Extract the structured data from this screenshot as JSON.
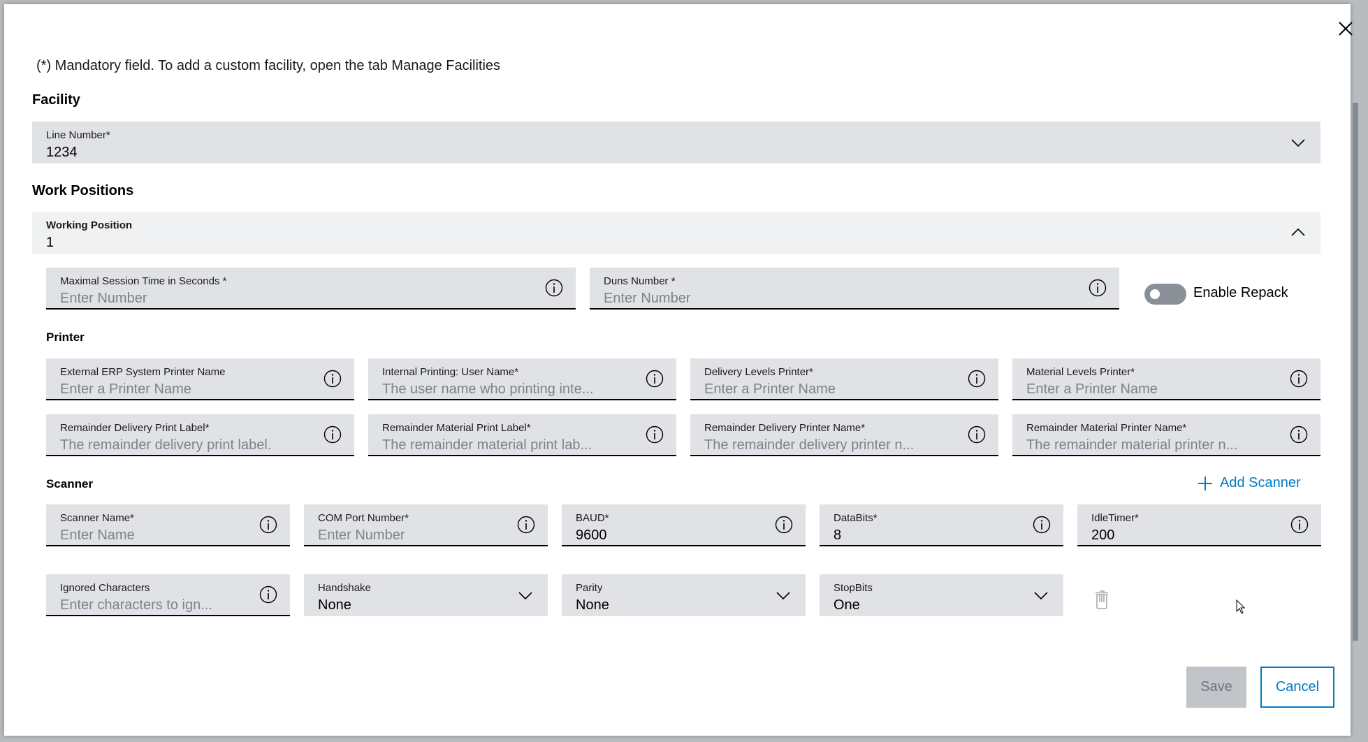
{
  "note": "(*) Mandatory field. To add a custom facility, open the tab Manage Facilities",
  "facility": {
    "heading": "Facility",
    "line_number": {
      "label": "Line Number*",
      "value": "1234"
    }
  },
  "work_positions": {
    "heading": "Work Positions",
    "working_position": {
      "label": "Working Position",
      "value": "1",
      "expanded": true
    },
    "session_time": {
      "label": "Maximal Session Time in Seconds *",
      "placeholder": "Enter Number"
    },
    "duns": {
      "label": "Duns Number *",
      "placeholder": "Enter Number"
    },
    "repack": {
      "label": "Enable Repack",
      "enabled": false
    }
  },
  "printer": {
    "heading": "Printer",
    "fields": [
      {
        "label": "External ERP System Printer Name",
        "placeholder": "Enter a Printer Name"
      },
      {
        "label": "Internal Printing: User Name*",
        "placeholder": "The user name who printing inte..."
      },
      {
        "label": "Delivery Levels Printer*",
        "placeholder": "Enter a Printer Name"
      },
      {
        "label": "Material Levels Printer*",
        "placeholder": "Enter a Printer Name"
      },
      {
        "label": "Remainder Delivery Print Label*",
        "placeholder": "The remainder delivery print label."
      },
      {
        "label": "Remainder Material Print Label*",
        "placeholder": "The remainder material print lab..."
      },
      {
        "label": "Remainder Delivery Printer Name*",
        "placeholder": "The remainder delivery printer n..."
      },
      {
        "label": "Remainder Material Printer Name*",
        "placeholder": "The remainder material printer n..."
      }
    ]
  },
  "scanner": {
    "heading": "Scanner",
    "add_label": "Add Scanner",
    "fields": [
      {
        "label": "Scanner Name*",
        "placeholder": "Enter Name",
        "type": "input"
      },
      {
        "label": "COM Port Number*",
        "placeholder": "Enter Number",
        "type": "input"
      },
      {
        "label": "BAUD*",
        "value": "9600",
        "type": "input"
      },
      {
        "label": "DataBits*",
        "value": "8",
        "type": "input"
      },
      {
        "label": "IdleTimer*",
        "value": "200",
        "type": "input"
      },
      {
        "label": "Ignored Characters",
        "placeholder": "Enter characters to ign...",
        "type": "input"
      },
      {
        "label": "Handshake",
        "value": "None",
        "type": "select"
      },
      {
        "label": "Parity",
        "value": "None",
        "type": "select"
      },
      {
        "label": "StopBits",
        "value": "One",
        "type": "select"
      }
    ]
  },
  "buttons": {
    "save": "Save",
    "cancel": "Cancel",
    "save_disabled": true
  },
  "colors": {
    "accent": "#007bc0",
    "field_bg": "#e0e2e5",
    "toggle_off": "#8a9097"
  }
}
